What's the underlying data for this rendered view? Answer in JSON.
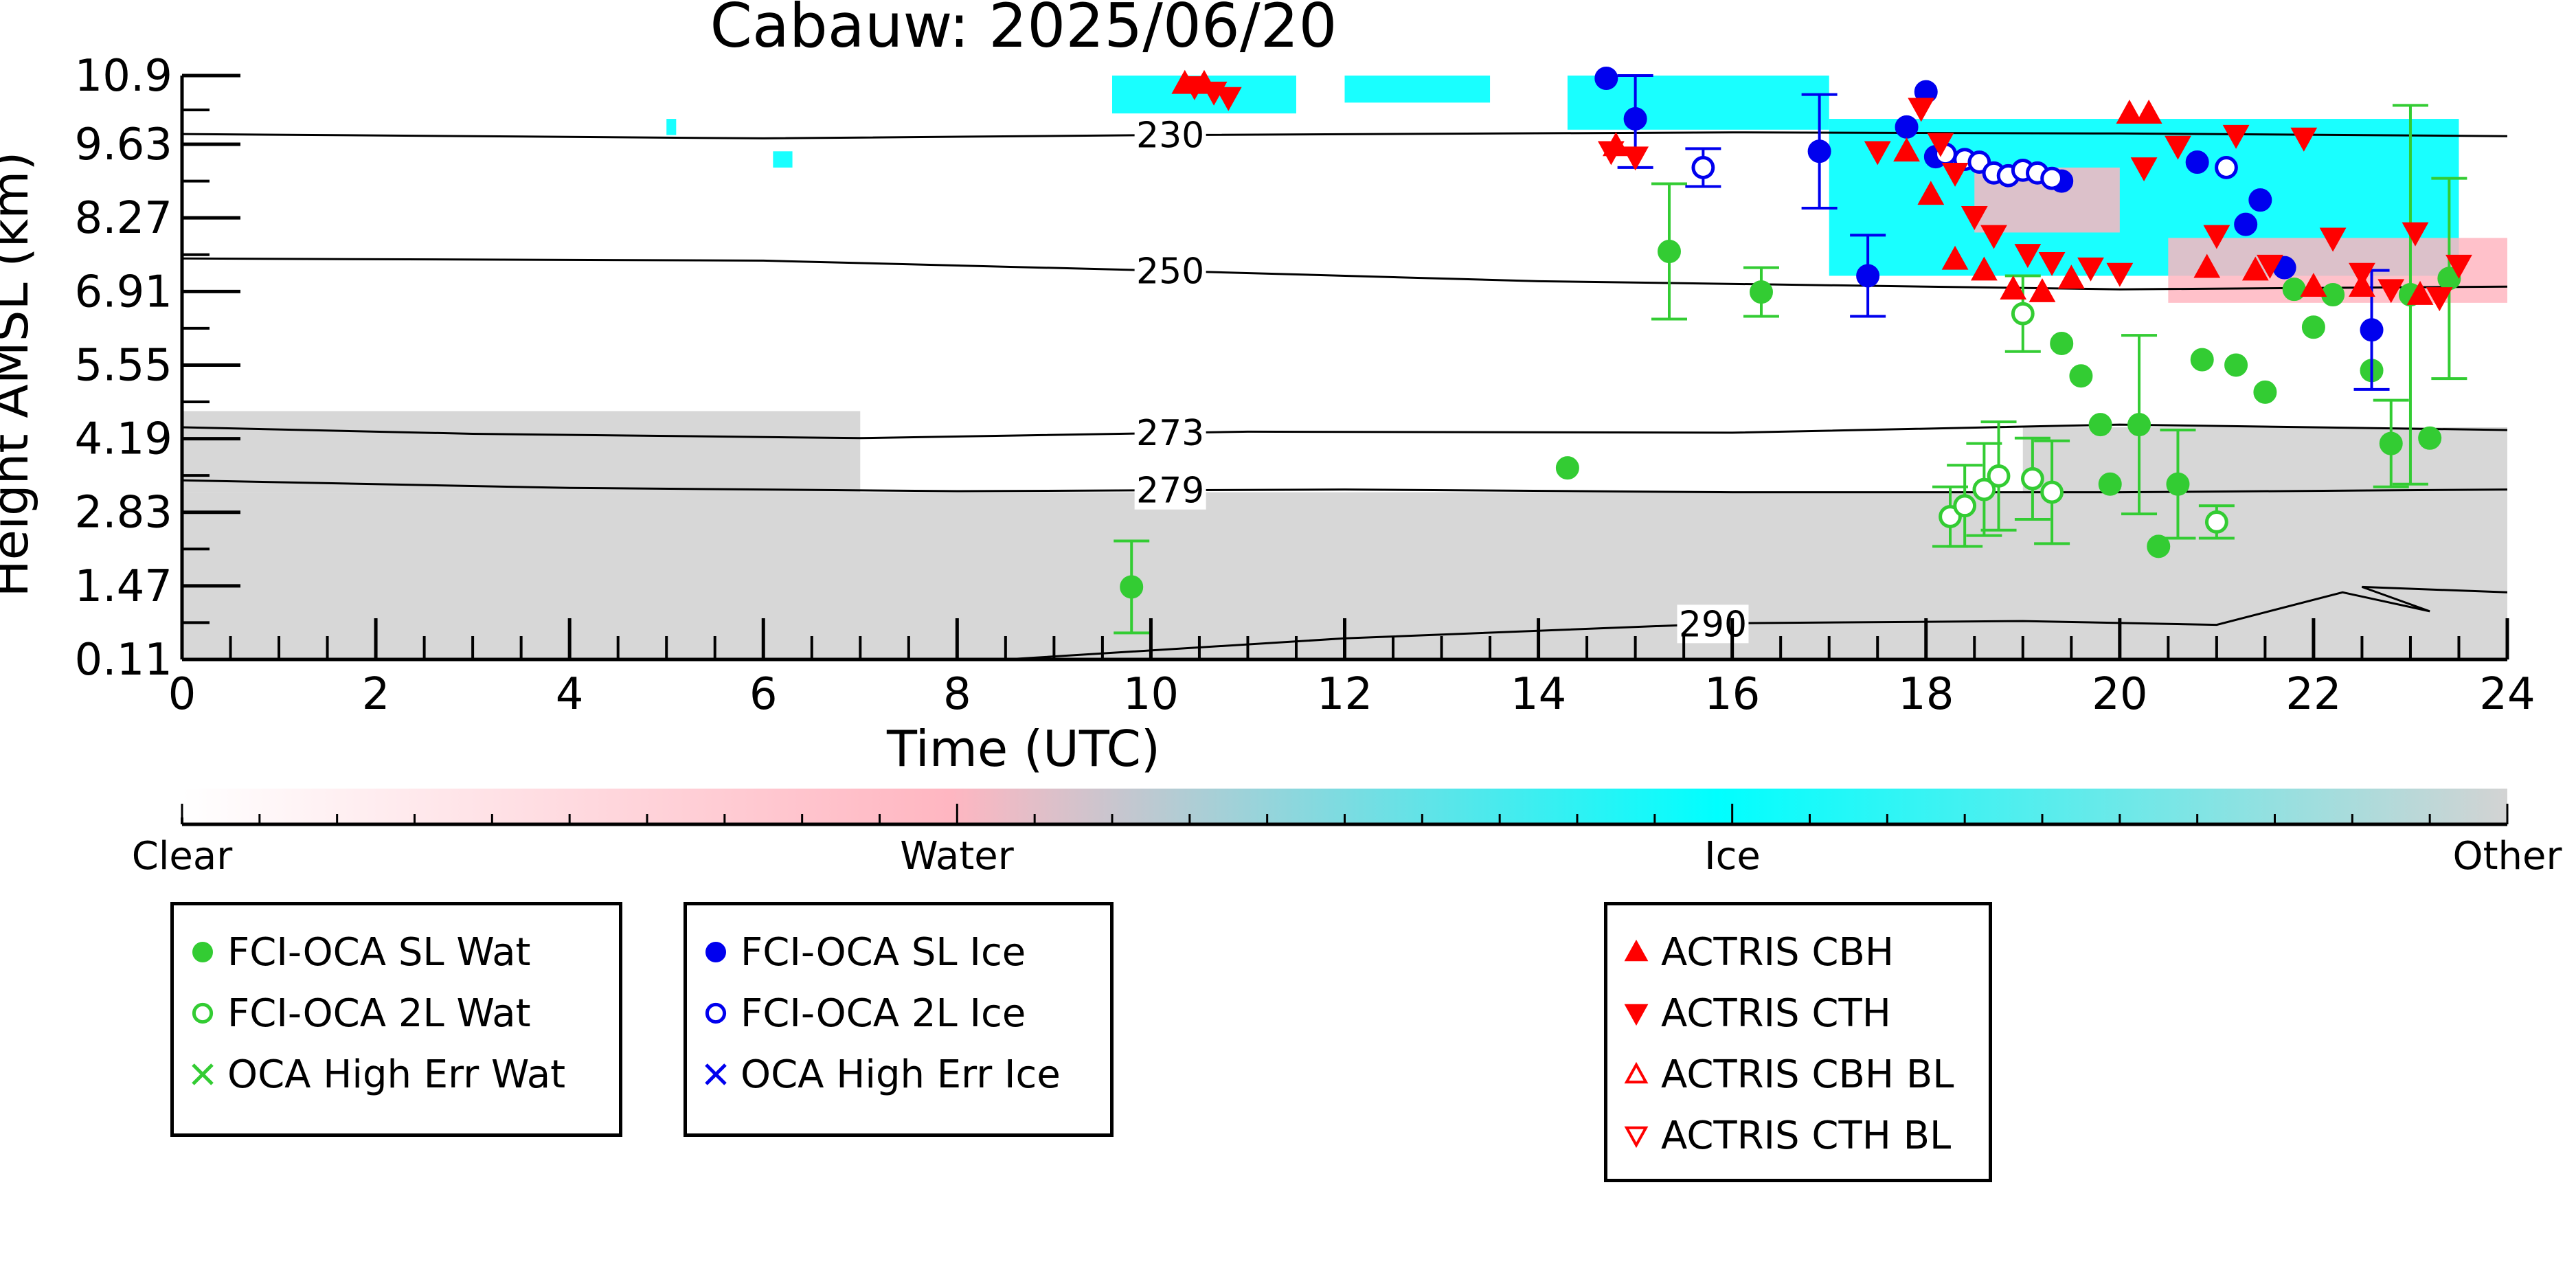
{
  "chart_data": {
    "type": "scatter",
    "title": "Cabauw: 2025/06/20",
    "xlabel": "Time (UTC)",
    "ylabel": "Height AMSL (km)",
    "xlim": [
      0,
      24
    ],
    "ylim": [
      0.11,
      10.9
    ],
    "x_ticks": [
      "0",
      "2",
      "4",
      "6",
      "8",
      "10",
      "12",
      "14",
      "16",
      "18",
      "20",
      "22",
      "24"
    ],
    "y_ticks": [
      "0.11",
      "1.47",
      "2.83",
      "4.19",
      "5.55",
      "6.91",
      "8.27",
      "9.63",
      "10.9"
    ],
    "colorbar": {
      "labels": [
        "Clear",
        "Water",
        "Ice",
        "Other"
      ],
      "colors": [
        "#ffffff",
        "#ffb6c1",
        "#00ffff",
        "#d3d3d3"
      ]
    },
    "temperature_contours": [
      {
        "label": "230",
        "points": [
          [
            0,
            9.82
          ],
          [
            6,
            9.74
          ],
          [
            10,
            9.8
          ],
          [
            16,
            9.85
          ],
          [
            20,
            9.83
          ],
          [
            24,
            9.78
          ]
        ]
      },
      {
        "label": "250",
        "points": [
          [
            0,
            7.52
          ],
          [
            6,
            7.48
          ],
          [
            10,
            7.3
          ],
          [
            14,
            7.1
          ],
          [
            18,
            7.0
          ],
          [
            20,
            6.95
          ],
          [
            24,
            7.0
          ]
        ]
      },
      {
        "label": "273",
        "points": [
          [
            0,
            4.4
          ],
          [
            3,
            4.28
          ],
          [
            7,
            4.2
          ],
          [
            11,
            4.32
          ],
          [
            16,
            4.3
          ],
          [
            20,
            4.45
          ],
          [
            24,
            4.35
          ]
        ]
      },
      {
        "label": "279",
        "points": [
          [
            0,
            3.42
          ],
          [
            4,
            3.28
          ],
          [
            8,
            3.22
          ],
          [
            12,
            3.25
          ],
          [
            16,
            3.2
          ],
          [
            20,
            3.2
          ],
          [
            24,
            3.25
          ]
        ]
      },
      {
        "label": "290",
        "points": [
          [
            8.5,
            0.11
          ],
          [
            12,
            0.5
          ],
          [
            16,
            0.78
          ],
          [
            19,
            0.82
          ],
          [
            21,
            0.75
          ],
          [
            22.3,
            1.35
          ],
          [
            23.2,
            1.0
          ],
          [
            22.5,
            1.45
          ],
          [
            24,
            1.35
          ]
        ]
      }
    ],
    "cloud_mask": {
      "other": [
        {
          "x0": 0,
          "x1": 24,
          "y0": 0.11,
          "y1": 3.2
        },
        {
          "x0": 0,
          "x1": 7,
          "y0": 3.2,
          "y1": 4.7
        },
        {
          "x0": 19,
          "x1": 24,
          "y0": 3.2,
          "y1": 4.4
        }
      ],
      "ice": [
        {
          "x0": 9.6,
          "x1": 11.5,
          "y0": 10.2,
          "y1": 10.9
        },
        {
          "x0": 12.0,
          "x1": 13.5,
          "y0": 10.4,
          "y1": 10.9
        },
        {
          "x0": 14.3,
          "x1": 17.0,
          "y0": 9.9,
          "y1": 10.9
        },
        {
          "x0": 17.0,
          "x1": 23.5,
          "y0": 7.2,
          "y1": 10.1
        },
        {
          "x0": 5.0,
          "x1": 5.1,
          "y0": 9.8,
          "y1": 10.1
        },
        {
          "x0": 6.1,
          "x1": 6.3,
          "y0": 9.2,
          "y1": 9.5
        }
      ],
      "water": [
        {
          "x0": 18.5,
          "x1": 20.0,
          "y0": 8.0,
          "y1": 9.2
        },
        {
          "x0": 20.5,
          "x1": 24.0,
          "y0": 6.7,
          "y1": 7.9
        }
      ]
    },
    "series": [
      {
        "name": "FCI-OCA SL Wat",
        "color": "#33cc33",
        "marker": "circle-filled",
        "points": [
          [
            9.8,
            1.45,
            0.85
          ],
          [
            14.3,
            3.65,
            0.0
          ],
          [
            15.35,
            7.65,
            1.25
          ],
          [
            16.3,
            6.9,
            0.45
          ],
          [
            19.4,
            5.95,
            0.0
          ],
          [
            19.6,
            5.35,
            0.0
          ],
          [
            19.8,
            4.45,
            0.0
          ],
          [
            19.9,
            3.35,
            0.0
          ],
          [
            20.2,
            4.45,
            1.65
          ],
          [
            20.4,
            2.2,
            0.0
          ],
          [
            20.6,
            3.35,
            1.0
          ],
          [
            20.85,
            5.65,
            0.0
          ],
          [
            21.2,
            5.55,
            0.0
          ],
          [
            21.5,
            5.05,
            0.0
          ],
          [
            21.8,
            6.95,
            0.0
          ],
          [
            22.0,
            6.25,
            0.0
          ],
          [
            22.2,
            6.85,
            0.0
          ],
          [
            22.6,
            5.45,
            0.0
          ],
          [
            22.8,
            4.1,
            0.8
          ],
          [
            23.0,
            6.85,
            3.5
          ],
          [
            23.2,
            4.2,
            0.0
          ],
          [
            23.4,
            7.15,
            1.85
          ]
        ]
      },
      {
        "name": "FCI-OCA 2L Wat",
        "color": "#33cc33",
        "marker": "circle-open",
        "points": [
          [
            18.25,
            2.75,
            0.55
          ],
          [
            18.4,
            2.95,
            0.75
          ],
          [
            18.6,
            3.25,
            0.85
          ],
          [
            18.75,
            3.5,
            1.0
          ],
          [
            19.0,
            6.5,
            0.7
          ],
          [
            19.1,
            3.45,
            0.75
          ],
          [
            19.3,
            3.2,
            0.95
          ],
          [
            21.0,
            2.65,
            0.3
          ]
        ]
      },
      {
        "name": "OCA High Err Wat",
        "color": "#33cc33",
        "marker": "x",
        "points": []
      },
      {
        "name": "FCI-OCA SL Ice",
        "color": "#0000ee",
        "marker": "circle-filled",
        "points": [
          [
            14.7,
            10.85,
            0.0
          ],
          [
            15.0,
            10.1,
            0.9
          ],
          [
            16.9,
            9.5,
            1.05
          ],
          [
            17.4,
            7.2,
            0.75
          ],
          [
            17.8,
            9.95,
            0.0
          ],
          [
            18.0,
            10.6,
            0.0
          ],
          [
            18.1,
            9.4,
            0.0
          ],
          [
            19.4,
            8.95,
            0.0
          ],
          [
            20.8,
            9.3,
            0.0
          ],
          [
            21.3,
            8.15,
            0.0
          ],
          [
            21.45,
            8.6,
            0.0
          ],
          [
            21.7,
            7.35,
            0.0
          ],
          [
            22.6,
            6.2,
            1.1
          ]
        ]
      },
      {
        "name": "FCI-OCA 2L Ice",
        "color": "#0000ee",
        "marker": "circle-open",
        "points": [
          [
            15.7,
            9.2,
            0.35
          ],
          [
            18.2,
            9.45,
            0.0
          ],
          [
            18.4,
            9.35,
            0.0
          ],
          [
            18.55,
            9.3,
            0.0
          ],
          [
            18.7,
            9.1,
            0.0
          ],
          [
            18.85,
            9.05,
            0.0
          ],
          [
            19.0,
            9.15,
            0.0
          ],
          [
            19.15,
            9.1,
            0.0
          ],
          [
            19.3,
            9.0,
            0.0
          ],
          [
            21.1,
            9.2,
            0.0
          ]
        ]
      },
      {
        "name": "OCA High Err Ice",
        "color": "#0000ee",
        "marker": "x",
        "points": []
      },
      {
        "name": "ACTRIS CBH",
        "color": "#ff0000",
        "marker": "triangle-up-filled",
        "points": [
          [
            10.35,
            10.75
          ],
          [
            10.55,
            10.75
          ],
          [
            14.8,
            9.6
          ],
          [
            17.8,
            9.5
          ],
          [
            18.05,
            8.7
          ],
          [
            18.3,
            7.5
          ],
          [
            18.6,
            7.3
          ],
          [
            18.9,
            6.95
          ],
          [
            19.2,
            6.9
          ],
          [
            19.5,
            7.15
          ],
          [
            20.1,
            10.2
          ],
          [
            20.3,
            10.2
          ],
          [
            20.9,
            7.35
          ],
          [
            21.4,
            7.3
          ],
          [
            22.0,
            7.0
          ],
          [
            22.5,
            7.0
          ],
          [
            23.1,
            6.85
          ]
        ]
      },
      {
        "name": "ACTRIS CTH",
        "color": "#ff0000",
        "marker": "triangle-down-filled",
        "points": [
          [
            10.45,
            10.7
          ],
          [
            10.65,
            10.6
          ],
          [
            10.8,
            10.5
          ],
          [
            14.75,
            9.5
          ],
          [
            15.0,
            9.4
          ],
          [
            17.5,
            9.5
          ],
          [
            17.95,
            10.3
          ],
          [
            18.15,
            9.65
          ],
          [
            18.3,
            9.1
          ],
          [
            18.5,
            8.3
          ],
          [
            18.7,
            7.95
          ],
          [
            19.05,
            7.6
          ],
          [
            19.3,
            7.45
          ],
          [
            19.7,
            7.35
          ],
          [
            20.0,
            7.25
          ],
          [
            20.25,
            9.2
          ],
          [
            20.6,
            9.6
          ],
          [
            21.0,
            7.95
          ],
          [
            21.2,
            9.8
          ],
          [
            21.55,
            7.4
          ],
          [
            21.9,
            9.75
          ],
          [
            22.2,
            7.9
          ],
          [
            22.5,
            7.25
          ],
          [
            22.8,
            6.95
          ],
          [
            23.05,
            8.0
          ],
          [
            23.3,
            6.8
          ],
          [
            23.5,
            7.4
          ]
        ]
      },
      {
        "name": "ACTRIS CBH BL",
        "color": "#ff0000",
        "marker": "triangle-up-open",
        "points": []
      },
      {
        "name": "ACTRIS CTH BL",
        "color": "#ff0000",
        "marker": "triangle-down-open",
        "points": []
      }
    ],
    "legend_groups": [
      {
        "name": "water-legend",
        "items": [
          {
            "label": "FCI-OCA SL Wat",
            "color": "#33cc33",
            "marker": "circle-filled"
          },
          {
            "label": "FCI-OCA 2L Wat",
            "color": "#33cc33",
            "marker": "circle-open"
          },
          {
            "label": "OCA High Err Wat",
            "color": "#33cc33",
            "marker": "x"
          }
        ]
      },
      {
        "name": "ice-legend",
        "items": [
          {
            "label": "FCI-OCA SL Ice",
            "color": "#0000ee",
            "marker": "circle-filled"
          },
          {
            "label": "FCI-OCA 2L Ice",
            "color": "#0000ee",
            "marker": "circle-open"
          },
          {
            "label": "OCA High Err Ice",
            "color": "#0000ee",
            "marker": "x"
          }
        ]
      },
      {
        "name": "actris-legend",
        "items": [
          {
            "label": "ACTRIS CBH",
            "color": "#ff0000",
            "marker": "triangle-up-filled"
          },
          {
            "label": "ACTRIS CTH",
            "color": "#ff0000",
            "marker": "triangle-down-filled"
          },
          {
            "label": "ACTRIS CBH BL",
            "color": "#ff0000",
            "marker": "triangle-up-open"
          },
          {
            "label": "ACTRIS CTH BL",
            "color": "#ff0000",
            "marker": "triangle-down-open"
          }
        ]
      }
    ]
  }
}
